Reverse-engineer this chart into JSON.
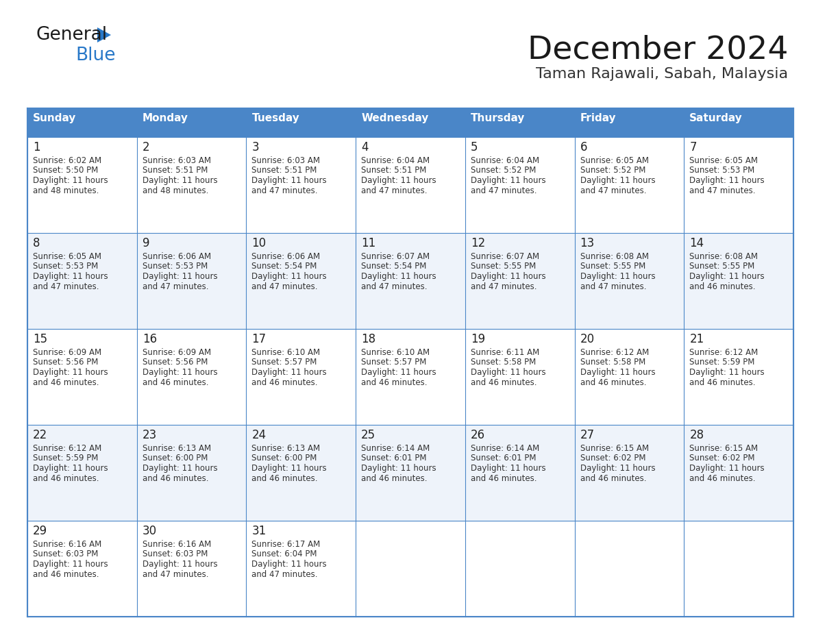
{
  "title": "December 2024",
  "subtitle": "Taman Rajawali, Sabah, Malaysia",
  "header_bg": "#4A86C8",
  "header_text": "#FFFFFF",
  "cell_bg_odd": "#FFFFFF",
  "cell_bg_even": "#EEF3FA",
  "border_color": "#4A86C8",
  "day_names": [
    "Sunday",
    "Monday",
    "Tuesday",
    "Wednesday",
    "Thursday",
    "Friday",
    "Saturday"
  ],
  "weeks": [
    [
      {
        "day": 1,
        "sunrise": "6:02 AM",
        "sunset": "5:50 PM",
        "daylight_h": "11 hours",
        "daylight_m": "and 48 minutes."
      },
      {
        "day": 2,
        "sunrise": "6:03 AM",
        "sunset": "5:51 PM",
        "daylight_h": "11 hours",
        "daylight_m": "and 48 minutes."
      },
      {
        "day": 3,
        "sunrise": "6:03 AM",
        "sunset": "5:51 PM",
        "daylight_h": "11 hours",
        "daylight_m": "and 47 minutes."
      },
      {
        "day": 4,
        "sunrise": "6:04 AM",
        "sunset": "5:51 PM",
        "daylight_h": "11 hours",
        "daylight_m": "and 47 minutes."
      },
      {
        "day": 5,
        "sunrise": "6:04 AM",
        "sunset": "5:52 PM",
        "daylight_h": "11 hours",
        "daylight_m": "and 47 minutes."
      },
      {
        "day": 6,
        "sunrise": "6:05 AM",
        "sunset": "5:52 PM",
        "daylight_h": "11 hours",
        "daylight_m": "and 47 minutes."
      },
      {
        "day": 7,
        "sunrise": "6:05 AM",
        "sunset": "5:53 PM",
        "daylight_h": "11 hours",
        "daylight_m": "and 47 minutes."
      }
    ],
    [
      {
        "day": 8,
        "sunrise": "6:05 AM",
        "sunset": "5:53 PM",
        "daylight_h": "11 hours",
        "daylight_m": "and 47 minutes."
      },
      {
        "day": 9,
        "sunrise": "6:06 AM",
        "sunset": "5:53 PM",
        "daylight_h": "11 hours",
        "daylight_m": "and 47 minutes."
      },
      {
        "day": 10,
        "sunrise": "6:06 AM",
        "sunset": "5:54 PM",
        "daylight_h": "11 hours",
        "daylight_m": "and 47 minutes."
      },
      {
        "day": 11,
        "sunrise": "6:07 AM",
        "sunset": "5:54 PM",
        "daylight_h": "11 hours",
        "daylight_m": "and 47 minutes."
      },
      {
        "day": 12,
        "sunrise": "6:07 AM",
        "sunset": "5:55 PM",
        "daylight_h": "11 hours",
        "daylight_m": "and 47 minutes."
      },
      {
        "day": 13,
        "sunrise": "6:08 AM",
        "sunset": "5:55 PM",
        "daylight_h": "11 hours",
        "daylight_m": "and 47 minutes."
      },
      {
        "day": 14,
        "sunrise": "6:08 AM",
        "sunset": "5:55 PM",
        "daylight_h": "11 hours",
        "daylight_m": "and 46 minutes."
      }
    ],
    [
      {
        "day": 15,
        "sunrise": "6:09 AM",
        "sunset": "5:56 PM",
        "daylight_h": "11 hours",
        "daylight_m": "and 46 minutes."
      },
      {
        "day": 16,
        "sunrise": "6:09 AM",
        "sunset": "5:56 PM",
        "daylight_h": "11 hours",
        "daylight_m": "and 46 minutes."
      },
      {
        "day": 17,
        "sunrise": "6:10 AM",
        "sunset": "5:57 PM",
        "daylight_h": "11 hours",
        "daylight_m": "and 46 minutes."
      },
      {
        "day": 18,
        "sunrise": "6:10 AM",
        "sunset": "5:57 PM",
        "daylight_h": "11 hours",
        "daylight_m": "and 46 minutes."
      },
      {
        "day": 19,
        "sunrise": "6:11 AM",
        "sunset": "5:58 PM",
        "daylight_h": "11 hours",
        "daylight_m": "and 46 minutes."
      },
      {
        "day": 20,
        "sunrise": "6:12 AM",
        "sunset": "5:58 PM",
        "daylight_h": "11 hours",
        "daylight_m": "and 46 minutes."
      },
      {
        "day": 21,
        "sunrise": "6:12 AM",
        "sunset": "5:59 PM",
        "daylight_h": "11 hours",
        "daylight_m": "and 46 minutes."
      }
    ],
    [
      {
        "day": 22,
        "sunrise": "6:12 AM",
        "sunset": "5:59 PM",
        "daylight_h": "11 hours",
        "daylight_m": "and 46 minutes."
      },
      {
        "day": 23,
        "sunrise": "6:13 AM",
        "sunset": "6:00 PM",
        "daylight_h": "11 hours",
        "daylight_m": "and 46 minutes."
      },
      {
        "day": 24,
        "sunrise": "6:13 AM",
        "sunset": "6:00 PM",
        "daylight_h": "11 hours",
        "daylight_m": "and 46 minutes."
      },
      {
        "day": 25,
        "sunrise": "6:14 AM",
        "sunset": "6:01 PM",
        "daylight_h": "11 hours",
        "daylight_m": "and 46 minutes."
      },
      {
        "day": 26,
        "sunrise": "6:14 AM",
        "sunset": "6:01 PM",
        "daylight_h": "11 hours",
        "daylight_m": "and 46 minutes."
      },
      {
        "day": 27,
        "sunrise": "6:15 AM",
        "sunset": "6:02 PM",
        "daylight_h": "11 hours",
        "daylight_m": "and 46 minutes."
      },
      {
        "day": 28,
        "sunrise": "6:15 AM",
        "sunset": "6:02 PM",
        "daylight_h": "11 hours",
        "daylight_m": "and 46 minutes."
      }
    ],
    [
      {
        "day": 29,
        "sunrise": "6:16 AM",
        "sunset": "6:03 PM",
        "daylight_h": "11 hours",
        "daylight_m": "and 46 minutes."
      },
      {
        "day": 30,
        "sunrise": "6:16 AM",
        "sunset": "6:03 PM",
        "daylight_h": "11 hours",
        "daylight_m": "and 47 minutes."
      },
      {
        "day": 31,
        "sunrise": "6:17 AM",
        "sunset": "6:04 PM",
        "daylight_h": "11 hours",
        "daylight_m": "and 47 minutes."
      },
      null,
      null,
      null,
      null
    ]
  ],
  "logo_color_general": "#1a1a1a",
  "logo_color_blue": "#2878C8",
  "logo_triangle_color": "#2878C8",
  "title_color": "#1a1a1a",
  "subtitle_color": "#333333"
}
